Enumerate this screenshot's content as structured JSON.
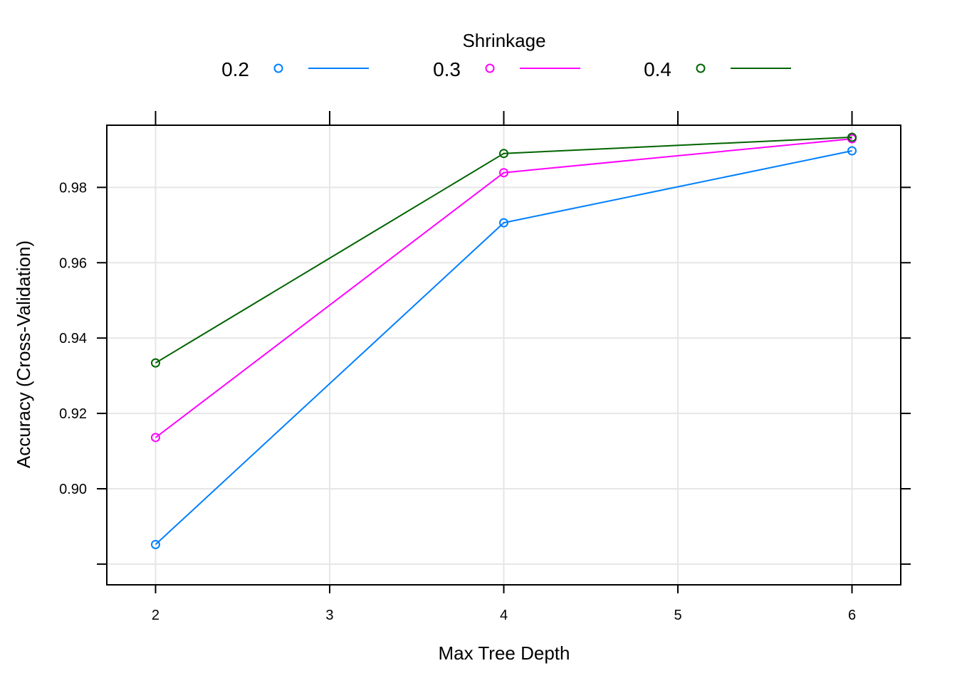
{
  "chart_data": {
    "type": "line",
    "title": "",
    "xlabel": "Max Tree Depth",
    "ylabel": "Accuracy (Cross-Validation)",
    "x": [
      2,
      4,
      6
    ],
    "xlim": [
      1.72,
      6.28
    ],
    "ylim": [
      0.8745,
      0.9965
    ],
    "xticks": [
      2,
      3,
      4,
      5,
      6
    ],
    "yticks": [
      0.88,
      0.9,
      0.92,
      0.94,
      0.96,
      0.98
    ],
    "ytick_labels": [
      "",
      "0.90",
      "0.92",
      "0.94",
      "0.96",
      "0.98"
    ],
    "grid": true,
    "legend": {
      "title": "Shrinkage",
      "placement": "top"
    },
    "series": [
      {
        "name": "0.2",
        "color": "#0080ff",
        "values": [
          0.8852,
          0.9706,
          0.9897
        ]
      },
      {
        "name": "0.3",
        "color": "#ff00ff",
        "values": [
          0.9136,
          0.9839,
          0.9929
        ]
      },
      {
        "name": "0.4",
        "color": "#006400",
        "values": [
          0.9334,
          0.989,
          0.9933
        ]
      }
    ]
  }
}
